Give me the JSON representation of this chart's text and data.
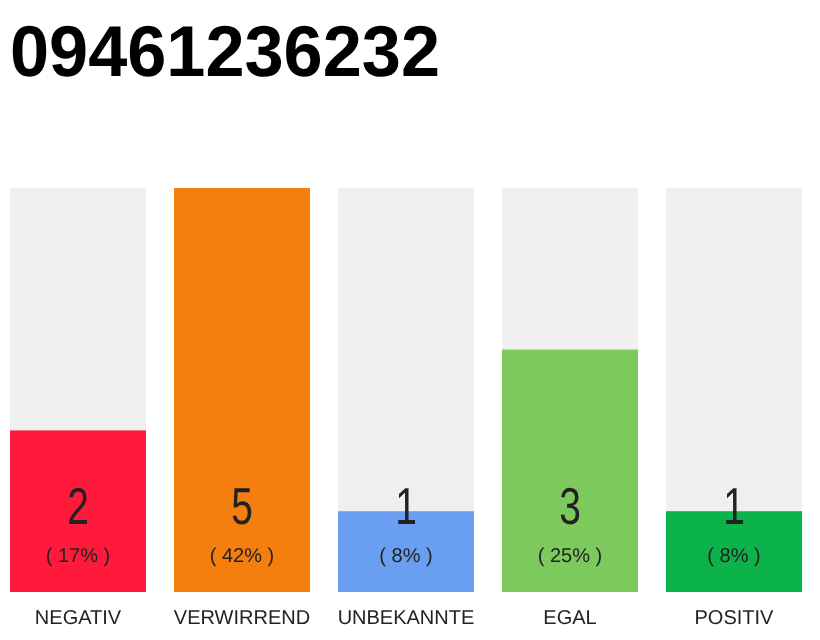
{
  "chart_data": {
    "type": "bar",
    "title": "09461236232",
    "categories": [
      "NEGATIV",
      "VERWIRREND",
      "UNBEKANNTE",
      "EGAL",
      "POSITIV"
    ],
    "values": [
      2,
      5,
      1,
      3,
      1
    ],
    "colors": [
      "#ff1a3c",
      "#f47f0f",
      "#6a9ef0",
      "#7dc95e",
      "#0bb34a"
    ],
    "data_labels": true,
    "annotations": [
      "( 17% )",
      "( 42% )",
      "( 8% )",
      "( 25% )",
      "( 8% )"
    ]
  }
}
